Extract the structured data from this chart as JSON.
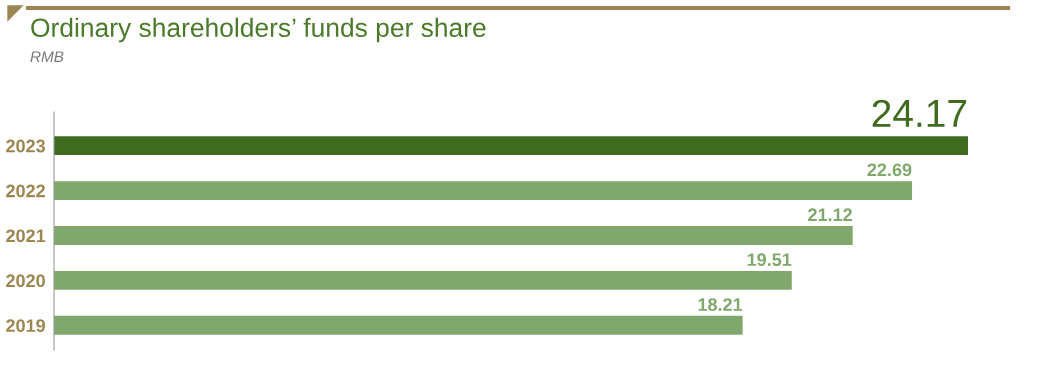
{
  "chart_data": {
    "type": "bar",
    "orientation": "horizontal",
    "title": "Ordinary shareholders’ funds per share",
    "subtitle": "RMB",
    "categories": [
      "2023",
      "2022",
      "2021",
      "2020",
      "2019"
    ],
    "values": [
      24.17,
      22.69,
      21.12,
      19.51,
      18.21
    ],
    "colors": [
      "#3f6b1f",
      "#80a86c",
      "#80a86c",
      "#80a86c",
      "#80a86c"
    ],
    "data_labels": true,
    "tick_labels": "y"
  }
}
